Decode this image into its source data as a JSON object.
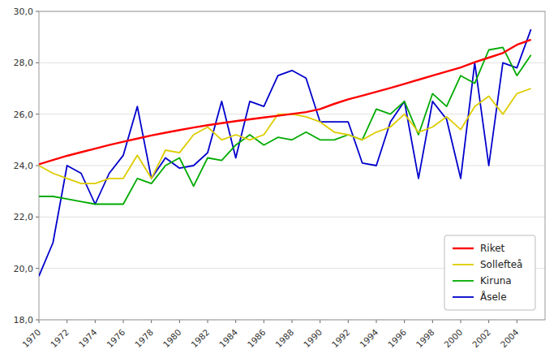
{
  "chart_data": {
    "type": "line",
    "x": [
      1970,
      1971,
      1972,
      1973,
      1974,
      1975,
      1976,
      1977,
      1978,
      1979,
      1980,
      1981,
      1982,
      1983,
      1984,
      1985,
      1986,
      1987,
      1988,
      1989,
      1990,
      1991,
      1992,
      1993,
      1994,
      1995,
      1996,
      1997,
      1998,
      1999,
      2000,
      2001,
      2002,
      2003,
      2004,
      2005
    ],
    "series": [
      {
        "name": "Riket",
        "color": "#ff0000",
        "values": [
          24.05,
          24.22,
          24.38,
          24.52,
          24.66,
          24.8,
          24.93,
          25.05,
          25.17,
          25.28,
          25.38,
          25.48,
          25.57,
          25.65,
          25.73,
          25.8,
          25.87,
          25.94,
          26.01,
          26.08,
          26.2,
          26.4,
          26.58,
          26.72,
          26.87,
          27.02,
          27.18,
          27.34,
          27.5,
          27.66,
          27.82,
          28.02,
          28.2,
          28.38,
          28.7,
          28.9
        ]
      },
      {
        "name": "Sollefteå",
        "color": "#ddcc00",
        "values": [
          24.0,
          23.7,
          23.5,
          23.3,
          23.3,
          23.5,
          23.5,
          24.4,
          23.5,
          24.6,
          24.5,
          25.2,
          25.5,
          25.0,
          25.2,
          25.0,
          25.2,
          26.0,
          26.0,
          25.9,
          25.7,
          25.3,
          25.2,
          25.0,
          25.3,
          25.5,
          26.0,
          25.3,
          25.5,
          25.9,
          25.4,
          26.3,
          26.7,
          26.0,
          26.8,
          27.0
        ]
      },
      {
        "name": "Kiruna",
        "color": "#00aa00",
        "values": [
          22.8,
          22.8,
          22.7,
          22.6,
          22.5,
          22.5,
          22.5,
          23.5,
          23.3,
          24.0,
          24.3,
          23.2,
          24.3,
          24.2,
          24.8,
          25.2,
          24.8,
          25.1,
          25.0,
          25.3,
          25.0,
          25.0,
          25.2,
          25.0,
          26.2,
          26.0,
          26.5,
          25.2,
          26.8,
          26.3,
          27.5,
          27.2,
          28.5,
          28.6,
          27.5,
          28.3
        ]
      },
      {
        "name": "Åsele",
        "color": "#0000cc",
        "values": [
          19.7,
          21.0,
          24.0,
          23.7,
          22.5,
          23.7,
          24.4,
          26.3,
          23.5,
          24.3,
          23.9,
          24.0,
          24.5,
          26.5,
          24.3,
          26.5,
          26.3,
          27.5,
          27.7,
          27.4,
          25.7,
          25.7,
          25.7,
          24.1,
          24.0,
          25.7,
          26.5,
          23.5,
          26.5,
          25.8,
          23.5,
          28.0,
          24.0,
          28.0,
          27.8,
          29.3
        ]
      }
    ],
    "xlim": [
      1970,
      2006
    ],
    "xticks": [
      1970,
      1972,
      1974,
      1976,
      1978,
      1980,
      1982,
      1984,
      1986,
      1988,
      1990,
      1992,
      1994,
      1996,
      1998,
      2000,
      2002,
      2004
    ],
    "ylim": [
      18.0,
      30.0
    ],
    "yticks": [
      {
        "value": 18.0,
        "label": "18,0"
      },
      {
        "value": 20.0,
        "label": "20,0"
      },
      {
        "value": 22.0,
        "label": "22,0"
      },
      {
        "value": 24.0,
        "label": "24,0"
      },
      {
        "value": 26.0,
        "label": "26,0"
      },
      {
        "value": 28.0,
        "label": "28,0"
      },
      {
        "value": 30.0,
        "label": "30,0"
      }
    ],
    "grid": "y",
    "legend": "lower right"
  }
}
